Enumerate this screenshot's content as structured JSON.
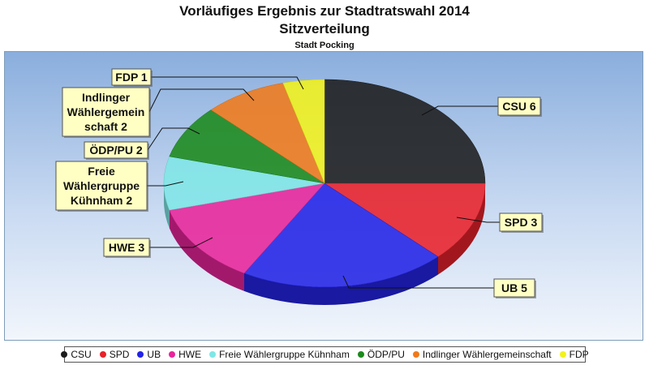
{
  "chart_data": {
    "type": "pie",
    "title": "Vorläufiges Ergebnis zur Stadtratswahl 2014",
    "subtitle": "Sitzverteilung",
    "caption": "Stadt Pocking",
    "slices": [
      {
        "name": "CSU",
        "value": 6,
        "label": "CSU 6",
        "color": "#1c1c1c"
      },
      {
        "name": "SPD",
        "value": 3,
        "label": "SPD 3",
        "color": "#e8212a"
      },
      {
        "name": "UB",
        "value": 5,
        "label": "UB 5",
        "color": "#2323e6"
      },
      {
        "name": "HWE",
        "value": 3,
        "label": "HWE 3",
        "color": "#e8249a"
      },
      {
        "name": "Freie Wählergruppe Kühnham",
        "value": 2,
        "label": "Freie Wählergruppe Kühnham 2",
        "color": "#7fe6e6"
      },
      {
        "name": "ÖDP/PU",
        "value": 2,
        "label": "ÖDP/PU 2",
        "color": "#1b8a1b"
      },
      {
        "name": "Indlinger Wählergemeinschaft",
        "value": 2,
        "label": "Indlinger Wählergemeinschaft 2",
        "color": "#f07a1a"
      },
      {
        "name": "FDP",
        "value": 1,
        "label": "FDP 1",
        "color": "#f2f21a"
      }
    ],
    "legend_position": "bottom"
  }
}
